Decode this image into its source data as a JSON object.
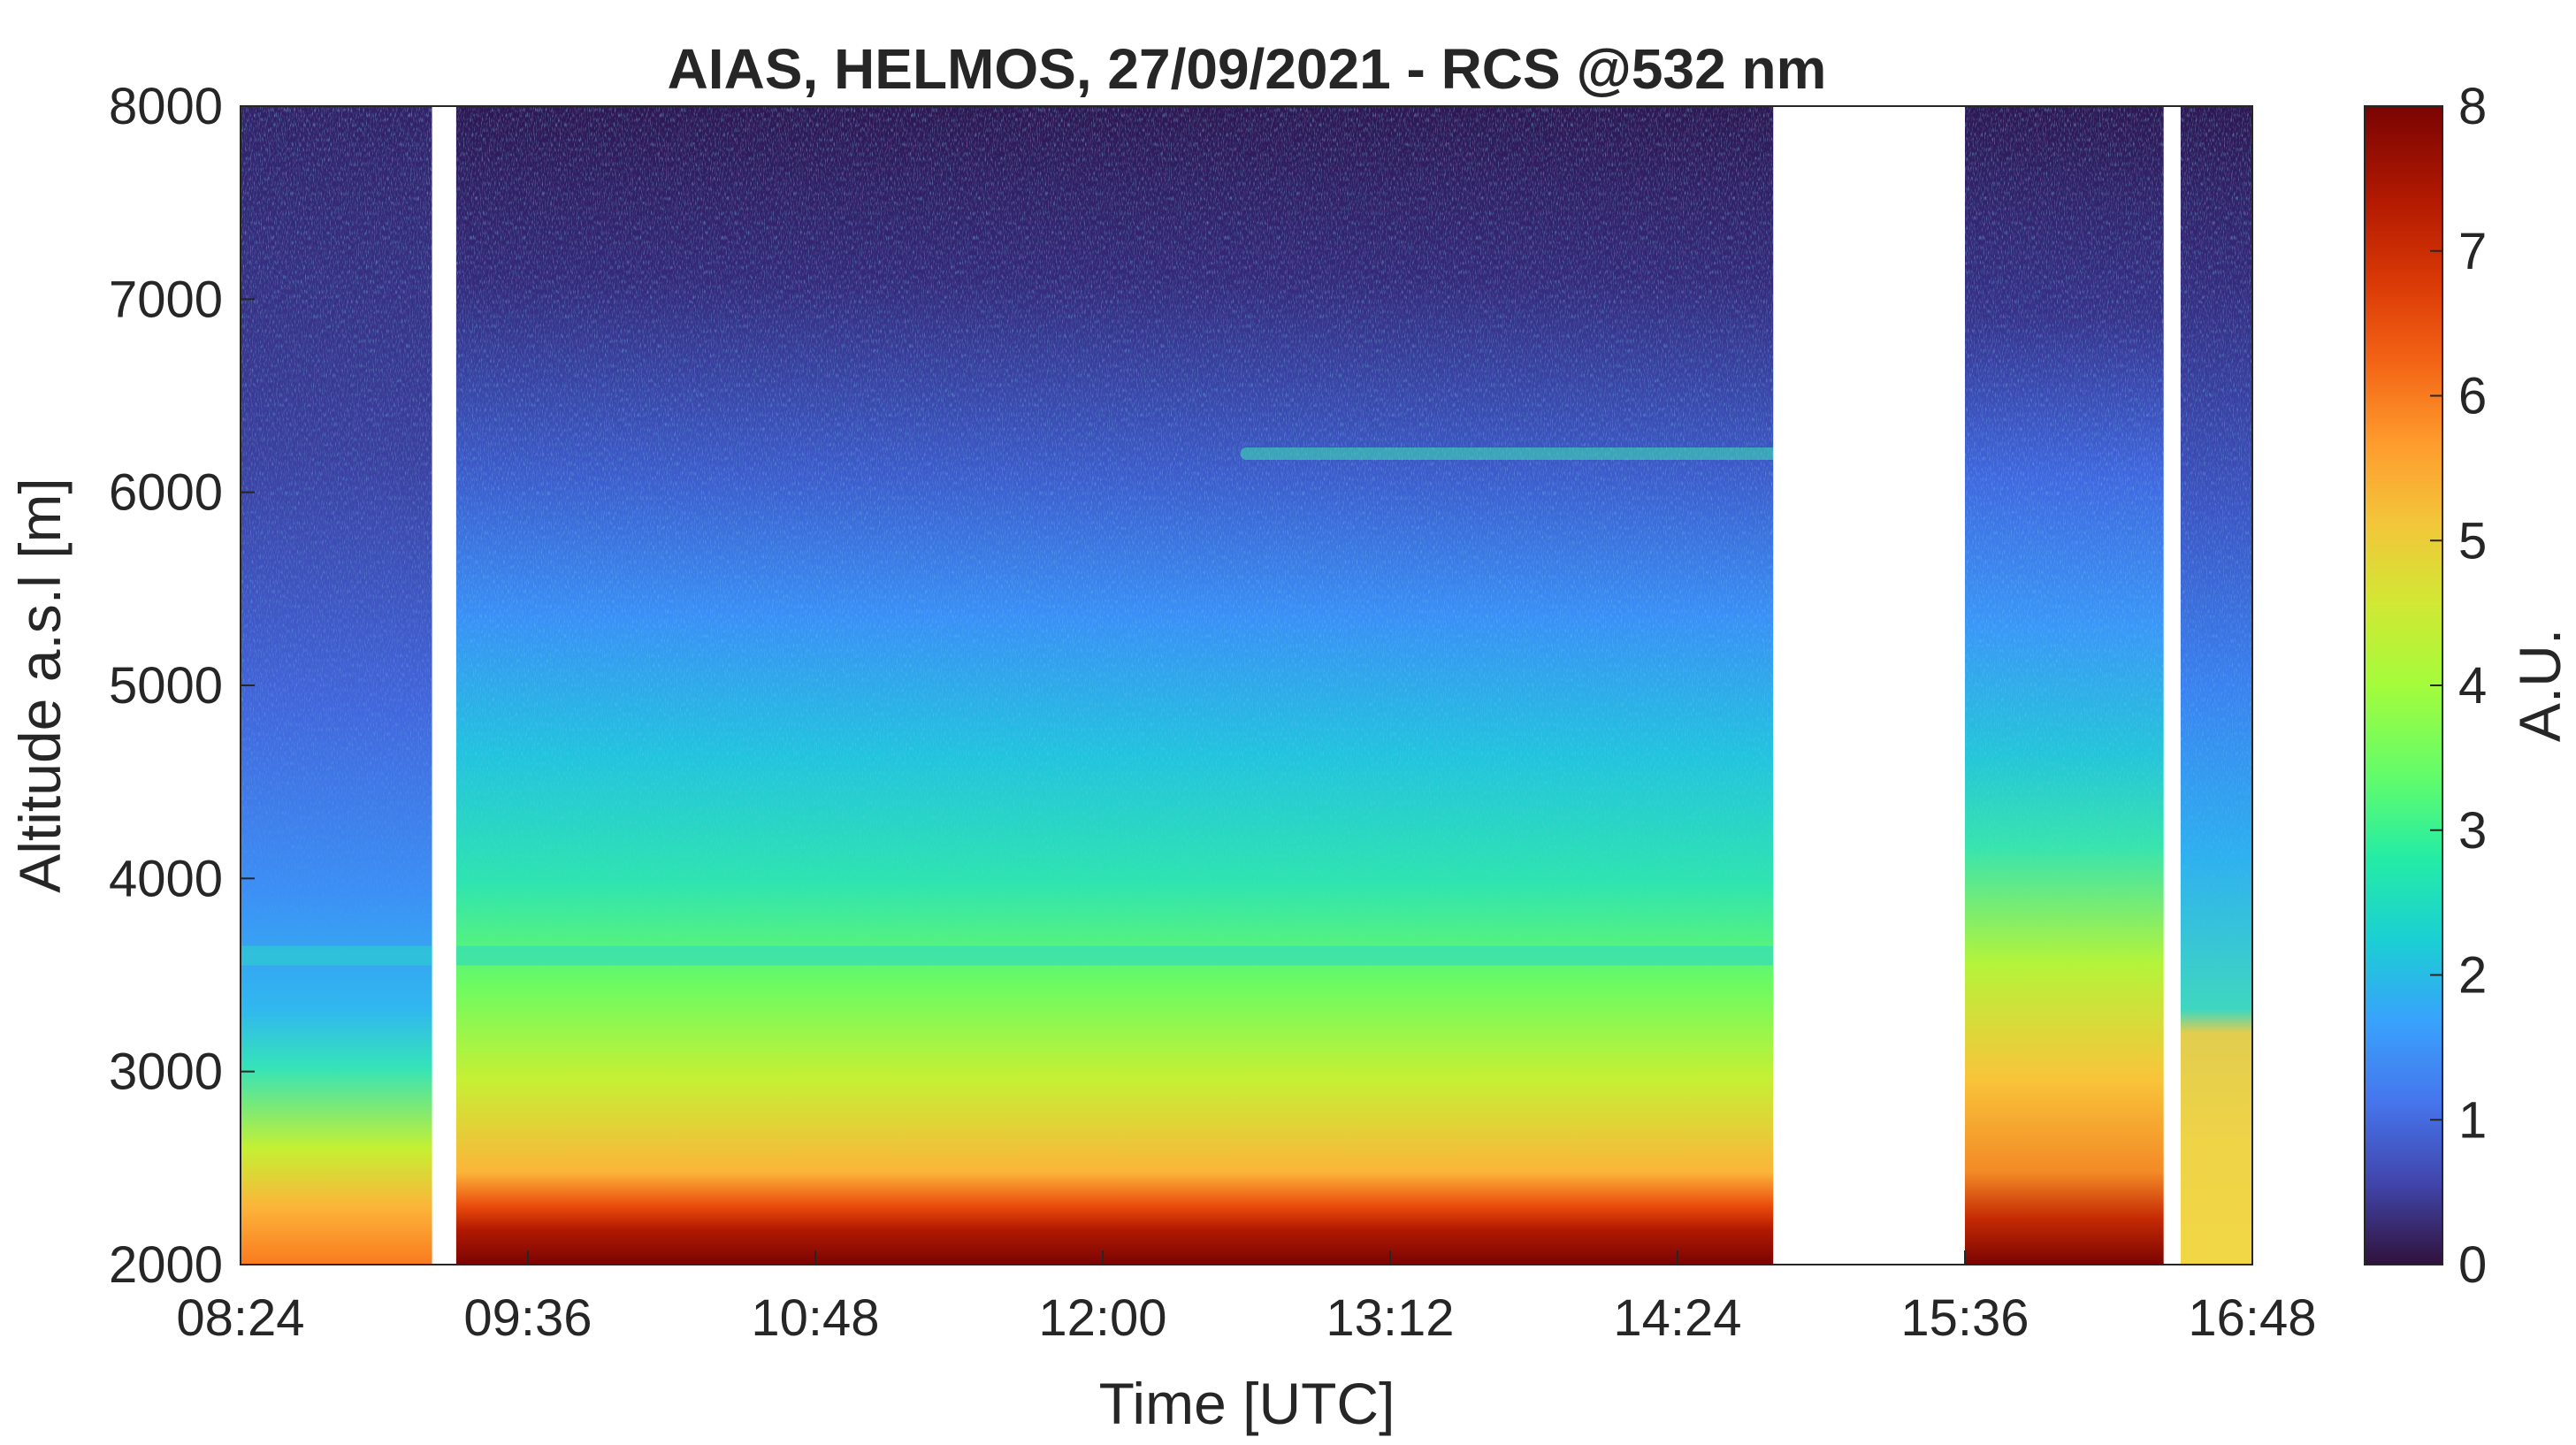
{
  "chart_data": {
    "type": "heatmap",
    "title": "AIAS, HELMOS, 27/09/2021 - RCS @532 nm",
    "xlabel": "Time [UTC]",
    "ylabel": "Altitude a.s.l [m]",
    "x_tick_labels": [
      "08:24",
      "09:36",
      "10:48",
      "12:00",
      "13:12",
      "14:24",
      "15:36",
      "16:48"
    ],
    "x_tick_hours": [
      8.4,
      9.6,
      10.8,
      12.0,
      13.2,
      14.4,
      15.6,
      16.8
    ],
    "xlim_hours": [
      8.4,
      16.8
    ],
    "y_ticks": [
      2000,
      3000,
      4000,
      5000,
      6000,
      7000,
      8000
    ],
    "ylim": [
      2000,
      8000
    ],
    "colorbar": {
      "label": "A.U.",
      "ticks": [
        0,
        1,
        2,
        3,
        4,
        5,
        6,
        7,
        8
      ],
      "range": [
        0,
        8
      ],
      "colormap": "turbo"
    },
    "data_gaps_hours": [
      [
        9.2,
        9.3
      ],
      [
        14.8,
        15.6
      ],
      [
        16.43,
        16.5
      ]
    ],
    "features": [
      {
        "description": "thin aerosol layer",
        "time_range_hours": [
          12.6,
          14.8
        ],
        "altitude_m": 6200
      },
      {
        "description": "residual/aerosol layer top",
        "time_range_hours": [
          8.4,
          14.8
        ],
        "altitude_m": 3600
      }
    ]
  }
}
